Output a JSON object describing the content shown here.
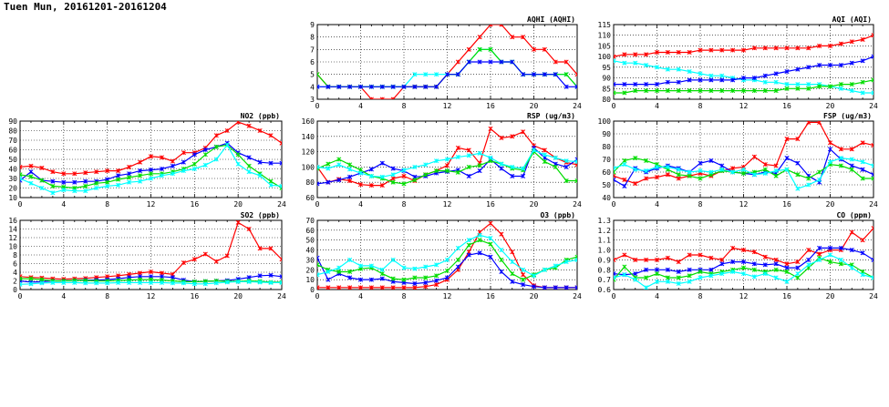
{
  "page_title": "Tuen Mun, 20161201-20161204",
  "colors": {
    "red": "#ff0000",
    "blue": "#0000ff",
    "green": "#00dd00",
    "cyan": "#00ffff"
  },
  "chart_data": [
    {
      "id": "aqhi",
      "type": "line",
      "title": "AQHI (AQHI)",
      "xlim": [
        0,
        24
      ],
      "xticks": [
        0,
        4,
        8,
        12,
        16,
        20,
        24
      ],
      "ylim": [
        3,
        9
      ],
      "yticks": [
        3,
        4,
        5,
        6,
        7,
        8,
        9
      ],
      "grid": true,
      "series": [
        {
          "color": "#ff0000",
          "values": [
            5,
            4,
            4,
            4,
            4,
            3,
            3,
            3,
            4,
            4,
            4,
            4,
            5,
            6,
            7,
            8,
            9,
            9,
            8,
            8,
            7,
            7,
            6,
            6,
            5
          ]
        },
        {
          "color": "#00ffff",
          "values": [
            4,
            4,
            4,
            4,
            4,
            4,
            4,
            4,
            4,
            5,
            5,
            5,
            5,
            5,
            6,
            7,
            7,
            6,
            6,
            5,
            5,
            5,
            5,
            5,
            4
          ]
        },
        {
          "color": "#00dd00",
          "values": [
            5,
            4,
            4,
            4,
            4,
            4,
            4,
            4,
            4,
            4,
            4,
            4,
            5,
            5,
            6,
            7,
            7,
            6,
            6,
            5,
            5,
            5,
            5,
            5,
            4
          ]
        },
        {
          "color": "#0000ff",
          "values": [
            4,
            4,
            4,
            4,
            4,
            4,
            4,
            4,
            4,
            4,
            4,
            4,
            5,
            5,
            6,
            6,
            6,
            6,
            6,
            5,
            5,
            5,
            5,
            4,
            4
          ]
        }
      ]
    },
    {
      "id": "aqi",
      "type": "line",
      "title": "AQI (AQI)",
      "xlim": [
        0,
        24
      ],
      "xticks": [
        0,
        4,
        8,
        12,
        16,
        20,
        24
      ],
      "ylim": [
        80,
        115
      ],
      "yticks": [
        80,
        85,
        90,
        95,
        100,
        105,
        110,
        115
      ],
      "grid": true,
      "series": [
        {
          "color": "#ff0000",
          "values": [
            100,
            101,
            101,
            101,
            102,
            102,
            102,
            102,
            103,
            103,
            103,
            103,
            103,
            104,
            104,
            104,
            104,
            104,
            104,
            105,
            105,
            106,
            107,
            108,
            110
          ]
        },
        {
          "color": "#00ffff",
          "values": [
            98,
            97,
            97,
            96,
            95,
            94,
            94,
            93,
            92,
            91,
            91,
            90,
            89,
            89,
            88,
            88,
            87,
            87,
            87,
            87,
            86,
            85,
            84,
            83,
            83
          ]
        },
        {
          "color": "#0000ff",
          "values": [
            87,
            87,
            87,
            87,
            87,
            88,
            88,
            89,
            89,
            89,
            89,
            89,
            90,
            90,
            91,
            92,
            93,
            94,
            95,
            96,
            96,
            96,
            97,
            98,
            100
          ]
        },
        {
          "color": "#00dd00",
          "values": [
            83,
            83,
            84,
            84,
            84,
            84,
            84,
            84,
            84,
            84,
            84,
            84,
            84,
            84,
            84,
            84,
            85,
            85,
            85,
            86,
            86,
            87,
            87,
            88,
            89
          ]
        }
      ]
    },
    {
      "id": "no2",
      "type": "line",
      "title": "NO2 (ppb)",
      "xlim": [
        0,
        24
      ],
      "xticks": [
        0,
        4,
        8,
        12,
        16,
        20,
        24
      ],
      "ylim": [
        10,
        90
      ],
      "yticks": [
        10,
        20,
        30,
        40,
        50,
        60,
        70,
        80,
        90
      ],
      "grid": true,
      "series": [
        {
          "color": "#ff0000",
          "values": [
            42,
            43,
            41,
            37,
            35,
            35,
            36,
            37,
            38,
            38,
            42,
            47,
            53,
            52,
            48,
            57,
            57,
            62,
            75,
            80,
            89,
            85,
            80,
            75,
            67
          ]
        },
        {
          "color": "#0000ff",
          "values": [
            28,
            37,
            28,
            27,
            26,
            26,
            27,
            27,
            29,
            33,
            35,
            38,
            39,
            40,
            43,
            47,
            55,
            60,
            63,
            67,
            57,
            52,
            47,
            46,
            46
          ]
        },
        {
          "color": "#00dd00",
          "values": [
            34,
            32,
            28,
            22,
            21,
            20,
            22,
            25,
            26,
            29,
            31,
            33,
            35,
            35,
            37,
            40,
            45,
            55,
            63,
            65,
            55,
            43,
            35,
            27,
            20
          ]
        },
        {
          "color": "#00ffff",
          "values": [
            30,
            25,
            20,
            15,
            18,
            17,
            17,
            20,
            22,
            23,
            26,
            27,
            30,
            33,
            35,
            38,
            40,
            44,
            50,
            65,
            45,
            37,
            33,
            23,
            22
          ]
        }
      ]
    },
    {
      "id": "rsp",
      "type": "line",
      "title": "RSP (ug/m3)",
      "xlim": [
        0,
        24
      ],
      "xticks": [
        0,
        4,
        8,
        12,
        16,
        20,
        24
      ],
      "ylim": [
        60,
        160
      ],
      "yticks": [
        60,
        80,
        100,
        120,
        140,
        160
      ],
      "grid": true,
      "series": [
        {
          "color": "#ff0000",
          "values": [
            100,
            80,
            84,
            82,
            77,
            76,
            76,
            85,
            88,
            82,
            90,
            95,
            102,
            125,
            122,
            105,
            150,
            138,
            140,
            146,
            128,
            122,
            112,
            106,
            103
          ]
        },
        {
          "color": "#0000ff",
          "values": [
            78,
            80,
            83,
            87,
            92,
            97,
            105,
            98,
            95,
            87,
            88,
            92,
            94,
            96,
            88,
            95,
            110,
            98,
            88,
            88,
            125,
            112,
            104,
            100,
            110
          ]
        },
        {
          "color": "#00dd00",
          "values": [
            98,
            104,
            110,
            103,
            96,
            88,
            85,
            80,
            78,
            83,
            90,
            95,
            95,
            93,
            100,
            102,
            108,
            104,
            98,
            96,
            120,
            107,
            100,
            82,
            82
          ]
        },
        {
          "color": "#00ffff",
          "values": [
            100,
            98,
            103,
            97,
            92,
            88,
            87,
            90,
            96,
            100,
            103,
            108,
            110,
            113,
            115,
            118,
            112,
            104,
            100,
            98,
            122,
            116,
            112,
            108,
            107
          ]
        }
      ]
    },
    {
      "id": "fsp",
      "type": "line",
      "title": "FSP (ug/m3)",
      "xlim": [
        0,
        24
      ],
      "xticks": [
        0,
        4,
        8,
        12,
        16,
        20,
        24
      ],
      "ylim": [
        40,
        100
      ],
      "yticks": [
        40,
        50,
        60,
        70,
        80,
        90,
        100
      ],
      "grid": true,
      "series": [
        {
          "color": "#ff0000",
          "values": [
            57,
            54,
            51,
            55,
            56,
            58,
            55,
            57,
            59,
            57,
            61,
            63,
            64,
            72,
            66,
            65,
            86,
            86,
            99,
            99,
            83,
            78,
            78,
            83,
            81
          ]
        },
        {
          "color": "#0000ff",
          "values": [
            54,
            49,
            63,
            60,
            63,
            65,
            63,
            60,
            67,
            69,
            65,
            60,
            59,
            58,
            60,
            59,
            71,
            67,
            57,
            52,
            78,
            70,
            65,
            62,
            58
          ]
        },
        {
          "color": "#00dd00",
          "values": [
            60,
            69,
            71,
            69,
            66,
            62,
            58,
            57,
            55,
            58,
            61,
            60,
            59,
            60,
            62,
            57,
            62,
            58,
            55,
            60,
            66,
            65,
            62,
            55,
            55
          ]
        },
        {
          "color": "#00ffff",
          "values": [
            63,
            66,
            62,
            61,
            64,
            64,
            62,
            60,
            61,
            60,
            62,
            60,
            62,
            58,
            59,
            61,
            62,
            47,
            50,
            54,
            68,
            71,
            70,
            68,
            65
          ]
        }
      ]
    },
    {
      "id": "so2",
      "type": "line",
      "title": "SO2 (ppb)",
      "xlim": [
        0,
        24
      ],
      "xticks": [
        0,
        4,
        8,
        12,
        16,
        20,
        24
      ],
      "ylim": [
        0,
        16
      ],
      "yticks": [
        0,
        2,
        4,
        6,
        8,
        10,
        12,
        14,
        16
      ],
      "grid": true,
      "series": [
        {
          "color": "#ff0000",
          "values": [
            3,
            2.8,
            2.7,
            2.5,
            2.4,
            2.5,
            2.6,
            2.8,
            3,
            3.2,
            3.5,
            3.8,
            4.1,
            3.8,
            3.5,
            6.2,
            7,
            8.2,
            6.5,
            7.8,
            15.5,
            14,
            9.5,
            9.5,
            7
          ]
        },
        {
          "color": "#0000ff",
          "values": [
            2,
            1.7,
            1.8,
            2,
            2,
            2.1,
            2.2,
            2.2,
            2.3,
            2.5,
            2.8,
            3,
            3,
            3,
            2.8,
            2.2,
            1.8,
            1.9,
            2,
            2.1,
            2.4,
            2.8,
            3.2,
            3.3,
            3
          ]
        },
        {
          "color": "#00dd00",
          "values": [
            2.5,
            2.5,
            2.3,
            2,
            2,
            2.1,
            2.1,
            2,
            2,
            2.1,
            2.2,
            2.3,
            2.3,
            2.2,
            2,
            1.8,
            1.8,
            1.9,
            2,
            1.9,
            1.9,
            2,
            1.9,
            1.7,
            1.7
          ]
        },
        {
          "color": "#00ffff",
          "values": [
            1.2,
            1.3,
            1.5,
            1.6,
            1.6,
            1.6,
            1.5,
            1.5,
            1.5,
            1.6,
            1.6,
            1.6,
            1.6,
            1.6,
            1.5,
            1.5,
            1.3,
            1.3,
            1.5,
            1.7,
            1.8,
            1.8,
            1.7,
            1.6,
            1.6
          ]
        }
      ]
    },
    {
      "id": "o3",
      "type": "line",
      "title": "O3 (ppb)",
      "xlim": [
        0,
        24
      ],
      "xticks": [
        0,
        4,
        8,
        12,
        16,
        20,
        24
      ],
      "ylim": [
        0,
        70
      ],
      "yticks": [
        0,
        10,
        20,
        30,
        40,
        50,
        60,
        70
      ],
      "grid": true,
      "series": [
        {
          "color": "#ff0000",
          "values": [
            2,
            2,
            2,
            2,
            2,
            2,
            2,
            2,
            2,
            2,
            3,
            5,
            10,
            20,
            38,
            58,
            67,
            56,
            38,
            15,
            4,
            2,
            2,
            2,
            2
          ]
        },
        {
          "color": "#0000ff",
          "values": [
            32,
            10,
            16,
            12,
            10,
            10,
            11,
            8,
            7,
            6,
            7,
            9,
            12,
            23,
            35,
            37,
            33,
            18,
            8,
            5,
            3,
            2,
            2,
            2,
            2
          ]
        },
        {
          "color": "#00dd00",
          "values": [
            25,
            20,
            18,
            18,
            21,
            22,
            16,
            11,
            10,
            12,
            12,
            14,
            19,
            30,
            45,
            50,
            46,
            30,
            16,
            10,
            15,
            20,
            22,
            30,
            33
          ]
        },
        {
          "color": "#00ffff",
          "values": [
            15,
            18,
            22,
            30,
            24,
            24,
            20,
            30,
            22,
            21,
            23,
            25,
            30,
            42,
            50,
            55,
            52,
            40,
            28,
            20,
            14,
            20,
            24,
            28,
            30
          ]
        }
      ]
    },
    {
      "id": "co",
      "type": "line",
      "title": "CO (ppm)",
      "xlim": [
        0,
        24
      ],
      "xticks": [
        0,
        4,
        8,
        12,
        16,
        20,
        24
      ],
      "ylim": [
        0.6,
        1.3
      ],
      "yticks": [
        0.6,
        0.7,
        0.8,
        0.9,
        1.0,
        1.1,
        1.2,
        1.3
      ],
      "grid": true,
      "series": [
        {
          "color": "#ff0000",
          "values": [
            0.9,
            0.95,
            0.9,
            0.9,
            0.9,
            0.92,
            0.88,
            0.95,
            0.95,
            0.92,
            0.9,
            1.02,
            1.0,
            0.98,
            0.93,
            0.9,
            0.86,
            0.88,
            1.0,
            0.96,
            1.0,
            1.0,
            1.18,
            1.1,
            1.22
          ]
        },
        {
          "color": "#0000ff",
          "values": [
            0.76,
            0.75,
            0.76,
            0.8,
            0.8,
            0.8,
            0.78,
            0.8,
            0.8,
            0.8,
            0.86,
            0.88,
            0.88,
            0.86,
            0.85,
            0.86,
            0.82,
            0.82,
            0.9,
            1.02,
            1.02,
            1.02,
            1.0,
            0.97,
            0.9
          ]
        },
        {
          "color": "#00dd00",
          "values": [
            0.7,
            0.83,
            0.72,
            0.72,
            0.76,
            0.72,
            0.72,
            0.74,
            0.78,
            0.76,
            0.78,
            0.8,
            0.82,
            0.8,
            0.78,
            0.8,
            0.78,
            0.72,
            0.82,
            0.92,
            0.88,
            0.86,
            0.85,
            0.78,
            0.72
          ]
        },
        {
          "color": "#00ffff",
          "values": [
            0.72,
            0.75,
            0.7,
            0.62,
            0.68,
            0.68,
            0.66,
            0.68,
            0.72,
            0.74,
            0.76,
            0.78,
            0.76,
            0.73,
            0.76,
            0.72,
            0.68,
            0.76,
            0.85,
            0.9,
            0.95,
            0.9,
            0.82,
            0.75,
            0.72
          ]
        }
      ]
    }
  ]
}
